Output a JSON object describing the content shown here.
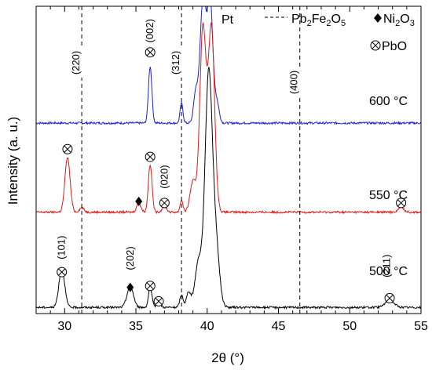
{
  "chart_data": {
    "type": "line",
    "xlabel": "2θ (°)",
    "ylabel": "Intensity (a. u.)",
    "xlim": [
      28,
      55
    ],
    "xticks": [
      "30",
      "35",
      "40",
      "45",
      "50",
      "55"
    ],
    "legend": {
      "pt": "Pt",
      "pb2fe2o5": "Pb2Fe2O5",
      "ni2o3": "Ni2O3",
      "pbo": "PbO"
    },
    "reference_lines": [
      {
        "x": 31.2,
        "label": "(220)"
      },
      {
        "x": 38.2,
        "label": "(312)"
      },
      {
        "x": 46.5,
        "label": "(400)"
      }
    ],
    "series": [
      {
        "name": "600 °C",
        "color": "#1f1fd6",
        "baseline": 0.62,
        "peaks": [
          {
            "x": 36.0,
            "h": 0.185,
            "w": 0.12
          },
          {
            "x": 38.2,
            "h": 0.065,
            "w": 0.1
          },
          {
            "x": 39.2,
            "h": 0.1,
            "w": 0.15
          },
          {
            "x": 39.7,
            "h": 0.4,
            "w": 0.2
          },
          {
            "x": 40.2,
            "h": 0.4,
            "w": 0.2
          },
          {
            "x": 40.7,
            "h": 0.06,
            "w": 0.15
          }
        ]
      },
      {
        "name": "550 °C",
        "color": "#e01818",
        "baseline": 0.33,
        "peaks": [
          {
            "x": 30.2,
            "h": 0.178,
            "w": 0.18
          },
          {
            "x": 31.2,
            "h": 0.015,
            "w": 0.15
          },
          {
            "x": 35.2,
            "h": 0.03,
            "w": 0.15
          },
          {
            "x": 36.0,
            "h": 0.155,
            "w": 0.13
          },
          {
            "x": 37.0,
            "h": 0.02,
            "w": 0.15
          },
          {
            "x": 38.2,
            "h": 0.04,
            "w": 0.1
          },
          {
            "x": 39.0,
            "h": 0.1,
            "w": 0.2
          },
          {
            "x": 39.7,
            "h": 0.6,
            "w": 0.22
          },
          {
            "x": 40.3,
            "h": 0.6,
            "w": 0.22
          },
          {
            "x": 53.6,
            "h": 0.015,
            "w": 0.2
          }
        ]
      },
      {
        "name": "500 °C",
        "color": "#000000",
        "baseline": 0.02,
        "peaks": [
          {
            "x": 29.8,
            "h": 0.128,
            "w": 0.2
          },
          {
            "x": 34.6,
            "h": 0.07,
            "w": 0.22
          },
          {
            "x": 36.0,
            "h": 0.065,
            "w": 0.12
          },
          {
            "x": 36.6,
            "h": 0.015,
            "w": 0.15
          },
          {
            "x": 38.2,
            "h": 0.04,
            "w": 0.12
          },
          {
            "x": 38.7,
            "h": 0.05,
            "w": 0.15
          },
          {
            "x": 39.4,
            "h": 0.15,
            "w": 0.25
          },
          {
            "x": 40.1,
            "h": 0.75,
            "w": 0.25
          },
          {
            "x": 40.6,
            "h": 0.2,
            "w": 0.25
          },
          {
            "x": 52.8,
            "h": 0.025,
            "w": 0.3
          }
        ]
      }
    ],
    "annotations": [
      {
        "text": "(101)",
        "x": 29.8,
        "y": 0.215,
        "rotate": true
      },
      {
        "text": "(202)",
        "x": 34.6,
        "y": 0.18,
        "rotate": true
      },
      {
        "text": "(020)",
        "x": 37.0,
        "y": 0.445,
        "rotate": true
      },
      {
        "text": "(002)",
        "x": 36.0,
        "y": 0.92,
        "rotate": true
      },
      {
        "text": "(211)",
        "x": 52.6,
        "y": 0.155,
        "rotate": true
      }
    ],
    "markers": [
      {
        "type": "pbo",
        "x": 29.8,
        "y": 0.135
      },
      {
        "type": "ni2o3",
        "x": 34.6,
        "y": 0.085
      },
      {
        "type": "pbo",
        "x": 36.0,
        "y": 0.09
      },
      {
        "type": "pbo",
        "x": 36.6,
        "y": 0.04
      },
      {
        "type": "pbo",
        "x": 52.8,
        "y": 0.05
      },
      {
        "type": "pbo",
        "x": 30.2,
        "y": 0.535
      },
      {
        "type": "ni2o3",
        "x": 35.2,
        "y": 0.365
      },
      {
        "type": "pbo",
        "x": 36.0,
        "y": 0.51
      },
      {
        "type": "pbo",
        "x": 37.0,
        "y": 0.36
      },
      {
        "type": "pbo",
        "x": 53.6,
        "y": 0.36
      },
      {
        "type": "pbo",
        "x": 36.0,
        "y": 0.85
      }
    ]
  }
}
